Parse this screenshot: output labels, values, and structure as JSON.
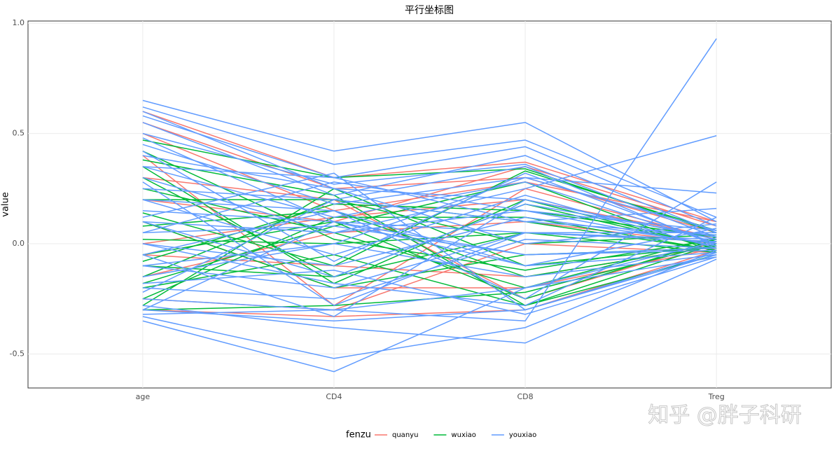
{
  "chart_data": {
    "type": "parallel",
    "title": "平行坐标图",
    "y_label": "value",
    "legend_title": "fenzu",
    "watermark": "知乎 @胖子科研",
    "categories": [
      "age",
      "CD4",
      "CD8",
      "Treg"
    ],
    "ylim": [
      -0.654,
      1.01
    ],
    "yticks": [
      {
        "value": -0.5,
        "label": "-0.5"
      },
      {
        "value": 0,
        "label": "0.0"
      },
      {
        "value": 0.5,
        "label": "0.5"
      },
      {
        "value": 1,
        "label": "1.0"
      }
    ],
    "grid": true,
    "legend_position": "bottom",
    "series": [
      {
        "name": "quanyu",
        "color": "#F8766D",
        "lines": [
          [
            0.6,
            0.3,
            0.37,
            0.1
          ],
          [
            0.55,
            0.25,
            0.3,
            0.05
          ],
          [
            0.4,
            -0.28,
            0.25,
            0.02
          ],
          [
            -0.3,
            -0.33,
            -0.3,
            -0.03
          ],
          [
            0.2,
            0.1,
            0.35,
            0.08
          ],
          [
            0.1,
            -0.2,
            -0.2,
            -0.02
          ],
          [
            -0.15,
            0.05,
            0.1,
            0.0
          ],
          [
            0.3,
            0.2,
            -0.25,
            0.01
          ],
          [
            -0.25,
            -0.3,
            0.0,
            -0.04
          ],
          [
            0.0,
            0.12,
            0.2,
            0.03
          ],
          [
            0.5,
            0.15,
            0.28,
            0.1
          ],
          [
            -0.05,
            -0.1,
            -0.15,
            -0.01
          ]
        ]
      },
      {
        "name": "wuxiao",
        "color": "#00BA38",
        "lines": [
          [
            0.47,
            0.3,
            0.34,
            0.05
          ],
          [
            0.38,
            0.22,
            -0.28,
            0.0
          ],
          [
            0.35,
            -0.18,
            0.2,
            -0.02
          ],
          [
            0.25,
            0.05,
            -0.2,
            0.03
          ],
          [
            0.2,
            0.2,
            0.1,
            -0.03
          ],
          [
            0.14,
            -0.1,
            0.33,
            0.06
          ],
          [
            0.08,
            0.15,
            -0.15,
            -0.01
          ],
          [
            0.02,
            0.0,
            0.05,
            -0.04
          ],
          [
            -0.05,
            0.1,
            -0.25,
            0.02
          ],
          [
            -0.1,
            -0.15,
            0.18,
            -0.02
          ],
          [
            -0.15,
            0.2,
            0.0,
            0.04
          ],
          [
            -0.2,
            -0.05,
            -0.28,
            -0.05
          ],
          [
            -0.25,
            0.12,
            0.12,
            -0.03
          ],
          [
            -0.3,
            -0.28,
            -0.22,
            0.0
          ],
          [
            -0.28,
            0.25,
            -0.1,
            -0.01
          ],
          [
            0.3,
            -0.15,
            0.05,
            0.01
          ],
          [
            -0.18,
            0.08,
            0.28,
            -0.04
          ],
          [
            0.42,
            0.02,
            -0.12,
            0.02
          ],
          [
            0.1,
            -0.2,
            -0.05,
            -0.02
          ],
          [
            -0.08,
            0.18,
            0.15,
            0.03
          ]
        ]
      },
      {
        "name": "youxiao",
        "color": "#619CFF",
        "lines": [
          [
            0.65,
            0.42,
            0.55,
            0.1
          ],
          [
            0.62,
            0.36,
            0.47,
            0.12
          ],
          [
            0.58,
            0.3,
            0.44,
            0.08
          ],
          [
            0.55,
            0.22,
            0.4,
            0.05
          ],
          [
            0.5,
            0.27,
            0.36,
            0.03
          ],
          [
            0.45,
            0.18,
            0.3,
            0.06
          ],
          [
            0.4,
            0.25,
            0.2,
            0.02
          ],
          [
            0.35,
            0.12,
            0.28,
            0.0
          ],
          [
            0.3,
            0.05,
            0.15,
            -0.01
          ],
          [
            0.25,
            0.2,
            0.1,
            0.04
          ],
          [
            0.2,
            -0.05,
            0.22,
            -0.02
          ],
          [
            0.15,
            0.1,
            0.05,
            0.01
          ],
          [
            0.1,
            -0.15,
            0.18,
            0.03
          ],
          [
            0.05,
            0.08,
            -0.05,
            -0.03
          ],
          [
            0.0,
            -0.1,
            0.12,
            0.0
          ],
          [
            -0.05,
            0.15,
            -0.1,
            -0.04
          ],
          [
            -0.1,
            -0.2,
            0.05,
            0.02
          ],
          [
            -0.15,
            0.0,
            -0.15,
            -0.05
          ],
          [
            -0.2,
            -0.25,
            0.02,
            -0.02
          ],
          [
            -0.25,
            -0.3,
            -0.2,
            -0.06
          ],
          [
            -0.3,
            -0.35,
            -0.3,
            -0.05
          ],
          [
            -0.33,
            -0.52,
            -0.38,
            -0.03
          ],
          [
            -0.35,
            -0.58,
            -0.2,
            0.01
          ],
          [
            -0.28,
            -0.38,
            -0.45,
            -0.07
          ],
          [
            -0.32,
            -0.3,
            -0.35,
            0.93
          ],
          [
            0.1,
            0.05,
            0.25,
            0.49
          ],
          [
            0.2,
            0.15,
            -0.25,
            0.28
          ],
          [
            -0.1,
            0.0,
            0.3,
            0.23
          ],
          [
            0.35,
            0.3,
            0.1,
            0.16
          ],
          [
            0.0,
            -0.18,
            -0.28,
            0.12
          ],
          [
            0.48,
            0.1,
            -0.1,
            0.07
          ],
          [
            -0.22,
            0.2,
            0.35,
            -0.01
          ],
          [
            0.28,
            -0.28,
            0.05,
            0.05
          ],
          [
            0.12,
            0.32,
            -0.3,
            -0.04
          ],
          [
            -0.05,
            -0.33,
            0.2,
            0.02
          ],
          [
            0.6,
            0.25,
            0.0,
            0.09
          ],
          [
            -0.3,
            0.1,
            -0.05,
            -0.02
          ],
          [
            0.42,
            -0.08,
            0.32,
            0.0
          ],
          [
            0.05,
            0.28,
            0.15,
            0.06
          ],
          [
            -0.18,
            -0.12,
            -0.32,
            -0.06
          ]
        ]
      }
    ]
  }
}
